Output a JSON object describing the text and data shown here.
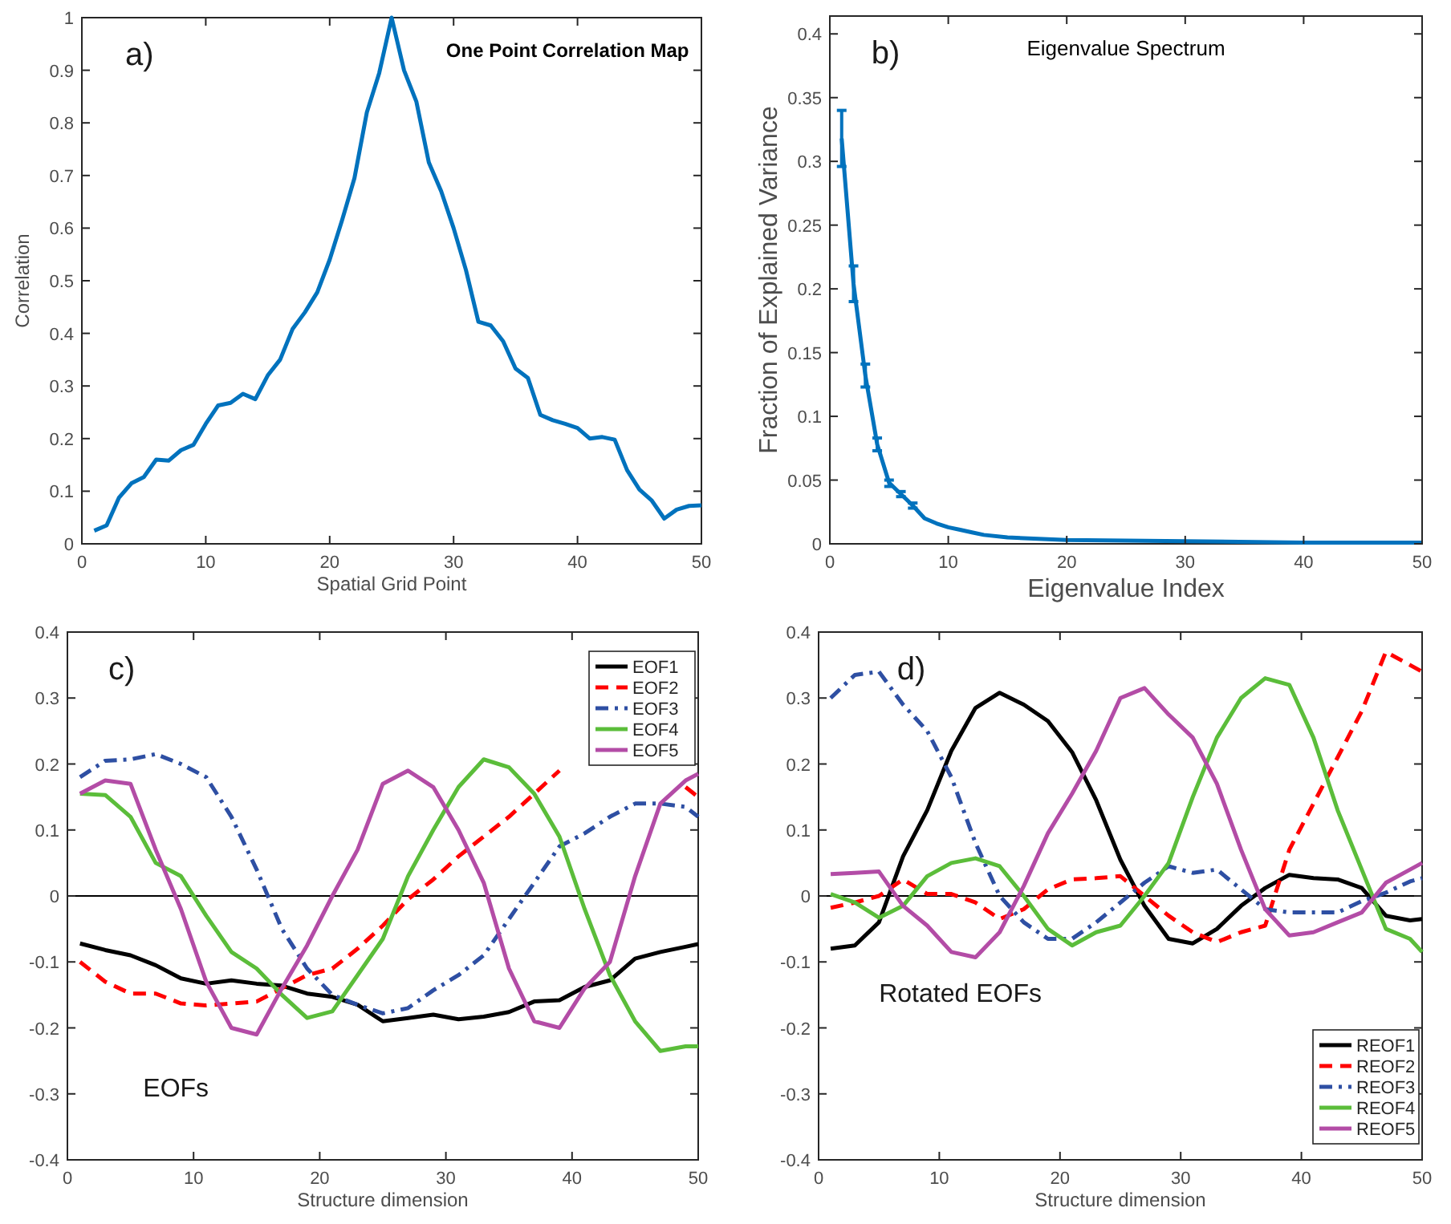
{
  "chart_data": [
    {
      "type": "line",
      "title": "One Point Correlation Map",
      "xlabel": "Spatial Grid Point",
      "ylabel": "Correlation",
      "annotations": [
        "a)"
      ],
      "x": [
        1,
        2,
        3,
        4,
        5,
        6,
        7,
        8,
        9,
        10,
        11,
        12,
        13,
        14,
        15,
        16,
        17,
        18,
        19,
        20,
        21,
        22,
        23,
        24,
        25,
        26,
        27,
        28,
        29,
        30,
        31,
        32,
        33,
        34,
        35,
        36,
        37,
        38,
        39,
        40,
        41,
        42,
        43,
        44,
        45,
        46,
        47,
        48,
        49,
        50
      ],
      "values": [
        0.025,
        0.035,
        0.088,
        0.115,
        0.127,
        0.16,
        0.158,
        0.178,
        0.188,
        0.228,
        0.263,
        0.268,
        0.285,
        0.275,
        0.32,
        0.35,
        0.408,
        0.44,
        0.478,
        0.54,
        0.615,
        0.695,
        0.82,
        0.895,
        1.0,
        0.9,
        0.84,
        0.725,
        0.67,
        0.6,
        0.52,
        0.422,
        0.415,
        0.385,
        0.333,
        0.315,
        0.245,
        0.235,
        0.228,
        0.22,
        0.2,
        0.203,
        0.198,
        0.14,
        0.103,
        0.082,
        0.048,
        0.065,
        0.072,
        0.073
      ],
      "color": "#0072bd",
      "xlim": [
        0,
        50
      ],
      "ylim": [
        0,
        1
      ],
      "xticks": [
        0,
        10,
        20,
        30,
        40,
        50
      ],
      "yticks": [
        0,
        0.1,
        0.2,
        0.3,
        0.4,
        0.5,
        0.6,
        0.7,
        0.8,
        0.9,
        1
      ]
    },
    {
      "type": "line",
      "title": "Eigenvalue Spectrum",
      "xlabel": "Eigenvalue Index",
      "ylabel": "Fraction of Explained Variance",
      "annotations": [
        "b)"
      ],
      "x": [
        1,
        2,
        3,
        4,
        5,
        6,
        7,
        8,
        9,
        10,
        11,
        12,
        13,
        15,
        20,
        30,
        40,
        50
      ],
      "values": [
        0.318,
        0.204,
        0.132,
        0.078,
        0.048,
        0.039,
        0.03,
        0.02,
        0.016,
        0.013,
        0.011,
        0.009,
        0.007,
        0.005,
        0.003,
        0.002,
        0.001,
        0.001
      ],
      "errors": [
        [
          0.296,
          0.34
        ],
        [
          0.19,
          0.218
        ],
        [
          0.123,
          0.141
        ],
        [
          0.073,
          0.083
        ],
        [
          0.045,
          0.05
        ],
        [
          0.037,
          0.041
        ],
        [
          0.028,
          0.032
        ],
        null,
        null,
        null,
        null,
        null,
        null,
        null,
        null,
        null,
        null,
        null
      ],
      "color": "#0072bd",
      "xlim": [
        0,
        50
      ],
      "ylim": [
        0,
        0.414
      ],
      "xticks": [
        0,
        10,
        20,
        30,
        40,
        50
      ],
      "yticks": [
        0,
        0.05,
        0.1,
        0.15,
        0.2,
        0.25,
        0.3,
        0.35,
        0.4
      ]
    },
    {
      "type": "line",
      "xlabel": "Structure dimension",
      "annotations": [
        "c)",
        "EOFs"
      ],
      "legend": "top right",
      "x": [
        1,
        3,
        5,
        7,
        9,
        11,
        13,
        15,
        17,
        19,
        21,
        23,
        25,
        27,
        29,
        31,
        33,
        35,
        37,
        39,
        41,
        43,
        45,
        47,
        49,
        50
      ],
      "series": [
        {
          "name": "EOF1",
          "color": "#000000",
          "line_style": "solid",
          "values": [
            -0.072,
            -0.082,
            -0.09,
            -0.105,
            -0.125,
            -0.133,
            -0.128,
            -0.133,
            -0.136,
            -0.148,
            -0.153,
            -0.165,
            -0.19,
            -0.185,
            -0.18,
            -0.187,
            -0.183,
            -0.176,
            -0.16,
            -0.158,
            -0.138,
            -0.128,
            -0.095,
            -0.085,
            -0.077,
            -0.073
          ]
        },
        {
          "name": "EOF2",
          "color": "#ff0000",
          "line_style": "dashed",
          "values": [
            -0.1,
            -0.13,
            -0.148,
            -0.148,
            -0.163,
            -0.166,
            -0.163,
            -0.16,
            -0.14,
            -0.12,
            -0.11,
            -0.08,
            -0.045,
            -0.005,
            0.025,
            0.06,
            0.09,
            0.12,
            0.155,
            0.19,
            null,
            null,
            null,
            null,
            0.165,
            0.15
          ]
        },
        {
          "name": "EOF3",
          "color": "#2e4fa3",
          "line_style": "dashdot",
          "values": [
            0.18,
            0.205,
            0.207,
            0.215,
            0.2,
            0.18,
            0.12,
            0.04,
            -0.05,
            -0.11,
            -0.15,
            -0.165,
            -0.178,
            -0.17,
            -0.143,
            -0.12,
            -0.09,
            -0.035,
            0.02,
            0.075,
            0.095,
            0.12,
            0.14,
            0.14,
            0.135,
            0.12
          ]
        },
        {
          "name": "EOF4",
          "color": "#5bbd3a",
          "line_style": "solid",
          "values": [
            0.155,
            0.153,
            0.12,
            0.05,
            0.03,
            -0.03,
            -0.085,
            -0.11,
            -0.15,
            -0.185,
            -0.175,
            -0.12,
            -0.065,
            0.03,
            0.1,
            0.165,
            0.207,
            0.195,
            0.155,
            0.09,
            -0.02,
            -0.12,
            -0.19,
            -0.235,
            -0.228,
            -0.228
          ]
        },
        {
          "name": "EOF5",
          "color": "#b34ca6",
          "line_style": "solid",
          "values": [
            0.155,
            0.175,
            0.17,
            0.07,
            -0.02,
            -0.13,
            -0.2,
            -0.21,
            -0.14,
            -0.075,
            0.0,
            0.07,
            0.17,
            0.19,
            0.165,
            0.1,
            0.02,
            -0.11,
            -0.19,
            -0.2,
            -0.14,
            -0.1,
            0.03,
            0.14,
            0.175,
            0.185
          ]
        }
      ],
      "ref_lines": [
        {
          "axis": "y",
          "value": 0,
          "color": "#000000"
        }
      ],
      "xlim": [
        0,
        50
      ],
      "ylim": [
        -0.4,
        0.4
      ],
      "xticks": [
        0,
        10,
        20,
        30,
        40,
        50
      ],
      "yticks": [
        -0.4,
        -0.3,
        -0.2,
        -0.1,
        0,
        0.1,
        0.2,
        0.3,
        0.4
      ]
    },
    {
      "type": "line",
      "xlabel": "Structure dimension",
      "annotations": [
        "d)",
        "Rotated EOFs"
      ],
      "legend": "bottom right",
      "x": [
        1,
        3,
        5,
        7,
        9,
        11,
        13,
        15,
        17,
        19,
        21,
        23,
        25,
        27,
        29,
        31,
        33,
        35,
        37,
        39,
        41,
        43,
        45,
        47,
        49,
        50
      ],
      "series": [
        {
          "name": "REOF1",
          "color": "#000000",
          "line_style": "solid",
          "values": [
            -0.08,
            -0.075,
            -0.04,
            0.06,
            0.13,
            0.22,
            0.285,
            0.308,
            0.29,
            0.265,
            0.218,
            0.145,
            0.055,
            -0.015,
            -0.065,
            -0.072,
            -0.05,
            -0.015,
            0.012,
            0.032,
            0.027,
            0.025,
            0.012,
            -0.03,
            -0.037,
            -0.035
          ]
        },
        {
          "name": "REOF2",
          "color": "#ff0000",
          "line_style": "dashed",
          "values": [
            -0.018,
            -0.01,
            0.0,
            0.025,
            0.003,
            0.003,
            -0.01,
            -0.035,
            -0.02,
            0.01,
            0.025,
            0.027,
            0.03,
            0.0,
            -0.03,
            -0.055,
            -0.07,
            -0.055,
            -0.045,
            0.07,
            0.14,
            0.21,
            0.28,
            0.37,
            0.35,
            0.34
          ]
        },
        {
          "name": "REOF3",
          "color": "#2e4fa3",
          "line_style": "dashdot",
          "values": [
            0.3,
            0.335,
            0.34,
            0.29,
            0.25,
            0.18,
            0.08,
            0.0,
            -0.04,
            -0.065,
            -0.065,
            -0.04,
            -0.01,
            0.02,
            0.045,
            0.035,
            0.04,
            0.01,
            -0.02,
            -0.025,
            -0.025,
            -0.025,
            -0.008,
            0.005,
            0.022,
            0.027
          ]
        },
        {
          "name": "REOF4",
          "color": "#5bbd3a",
          "line_style": "solid",
          "values": [
            0.003,
            -0.01,
            -0.033,
            -0.015,
            0.03,
            0.05,
            0.057,
            0.045,
            0.0,
            -0.05,
            -0.075,
            -0.055,
            -0.045,
            0.0,
            0.05,
            0.15,
            0.24,
            0.3,
            0.33,
            0.32,
            0.24,
            0.13,
            0.04,
            -0.05,
            -0.065,
            -0.085
          ]
        },
        {
          "name": "REOF5",
          "color": "#b34ca6",
          "line_style": "solid",
          "values": [
            0.033,
            0.035,
            0.037,
            -0.015,
            -0.045,
            -0.085,
            -0.093,
            -0.055,
            0.015,
            0.095,
            0.155,
            0.22,
            0.3,
            0.315,
            0.275,
            0.24,
            0.17,
            0.07,
            -0.02,
            -0.06,
            -0.055,
            -0.04,
            -0.025,
            0.02,
            0.04,
            0.05
          ]
        }
      ],
      "ref_lines": [
        {
          "axis": "y",
          "value": 0,
          "color": "#000000"
        }
      ],
      "xlim": [
        0,
        50
      ],
      "ylim": [
        -0.4,
        0.4
      ],
      "xticks": [
        0,
        10,
        20,
        30,
        40,
        50
      ],
      "yticks": [
        -0.4,
        -0.3,
        -0.2,
        -0.1,
        0,
        0.1,
        0.2,
        0.3,
        0.4
      ]
    }
  ]
}
